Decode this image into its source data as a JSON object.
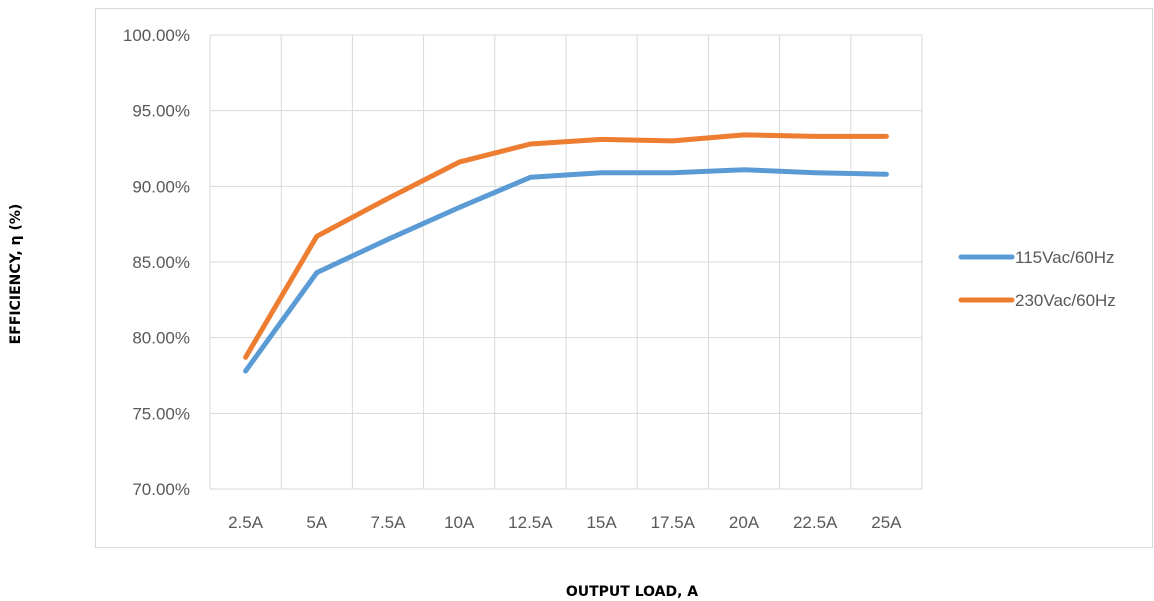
{
  "chart_data": {
    "type": "line",
    "title": "",
    "xlabel": "OUTPUT LOAD, A",
    "ylabel": "EFFICIENCY, η (%)",
    "categories": [
      "2.5A",
      "5A",
      "7.5A",
      "10A",
      "12.5A",
      "15A",
      "17.5A",
      "20A",
      "22.5A",
      "25A"
    ],
    "ylim": [
      70,
      100
    ],
    "y_ticks": [
      "70.00%",
      "75.00%",
      "80.00%",
      "85.00%",
      "90.00%",
      "95.00%",
      "100.00%"
    ],
    "y_tick_values": [
      70,
      75,
      80,
      85,
      90,
      95,
      100
    ],
    "grid": true,
    "legend_position": "right",
    "series": [
      {
        "name": "115Vac/60Hz",
        "color": "#5b9bd5",
        "values": [
          77.8,
          84.3,
          86.5,
          88.6,
          90.6,
          90.9,
          90.9,
          91.1,
          90.9,
          90.8
        ]
      },
      {
        "name": "230Vac/60Hz",
        "color": "#ed7d31",
        "values": [
          78.7,
          86.7,
          89.2,
          91.6,
          92.8,
          93.1,
          93.0,
          93.4,
          93.3,
          93.3
        ]
      }
    ]
  }
}
